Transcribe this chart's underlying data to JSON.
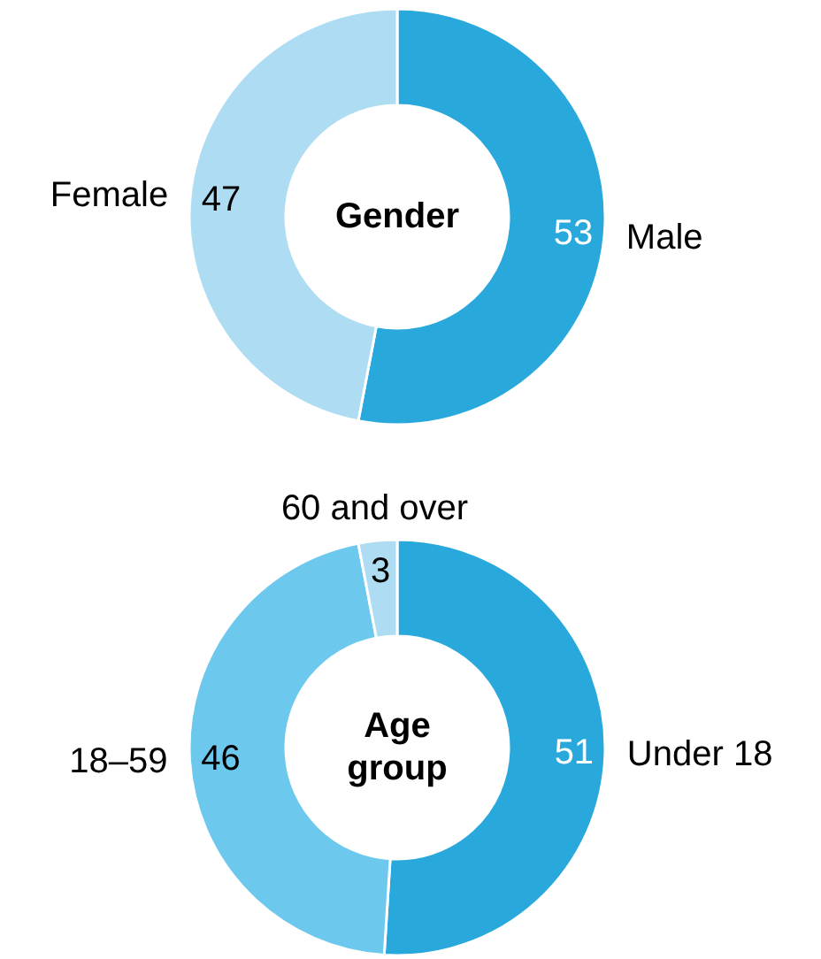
{
  "chart_data": [
    {
      "type": "donut",
      "title": "Gender",
      "categories": [
        "Male",
        "Female"
      ],
      "values": [
        53,
        47
      ],
      "colors": [
        "#29a8dc",
        "#addcf3"
      ],
      "data_labels": true
    },
    {
      "type": "donut",
      "title": "Age group",
      "categories": [
        "Under 18",
        "18–59",
        "60 and over"
      ],
      "values": [
        51,
        46,
        3
      ],
      "colors": [
        "#29a8dc",
        "#6dc8ee",
        "#addcf3"
      ],
      "data_labels": true
    }
  ]
}
